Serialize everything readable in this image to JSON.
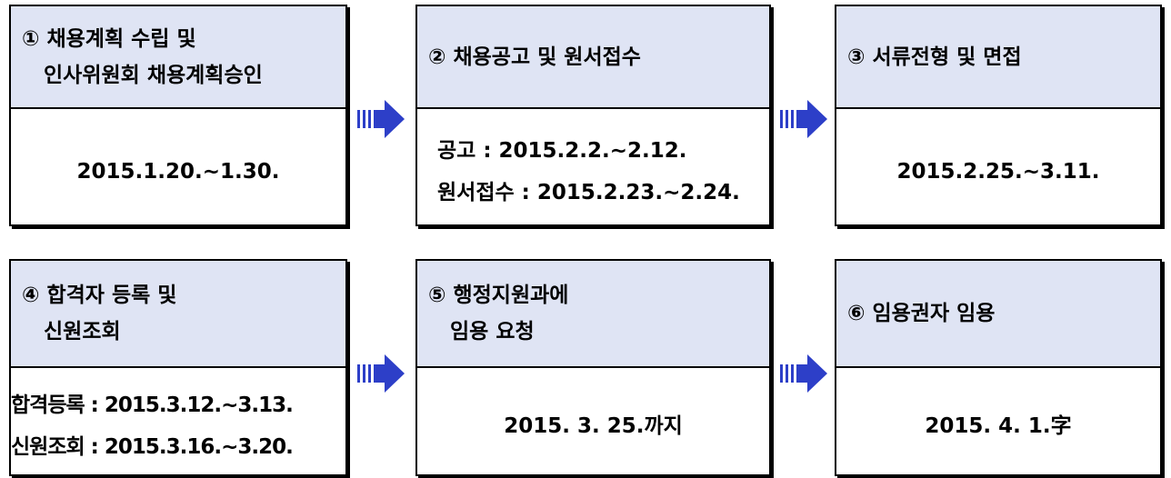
{
  "nodes": [
    {
      "title": [
        "① 채용계획 수립 및",
        "   인사위원회 채용계획승인"
      ],
      "body": [
        "2015.1.20.~1.30."
      ]
    },
    {
      "title": [
        "② 채용공고 및 원서접수"
      ],
      "body": [
        "공고 : 2015.2.2.~2.12.",
        "원서접수 : 2015.2.23.~2.24."
      ]
    },
    {
      "title": [
        "③ 서류전형 및 면접"
      ],
      "body": [
        "2015.2.25.~3.11."
      ]
    },
    {
      "title": [
        "④ 합격자 등록 및",
        "   신원조회"
      ],
      "body": [
        "합격등록 : 2015.3.12.~3.13.",
        "신원조회 : 2015.3.16.~3.20."
      ]
    },
    {
      "title": [
        "⑤ 행정지원과에",
        "   임용 요청"
      ],
      "body": [
        "2015. 3. 25.까지"
      ]
    },
    {
      "title": [
        "⑥ 임용권자 임용"
      ],
      "body": [
        "2015. 4. 1.字"
      ]
    }
  ]
}
